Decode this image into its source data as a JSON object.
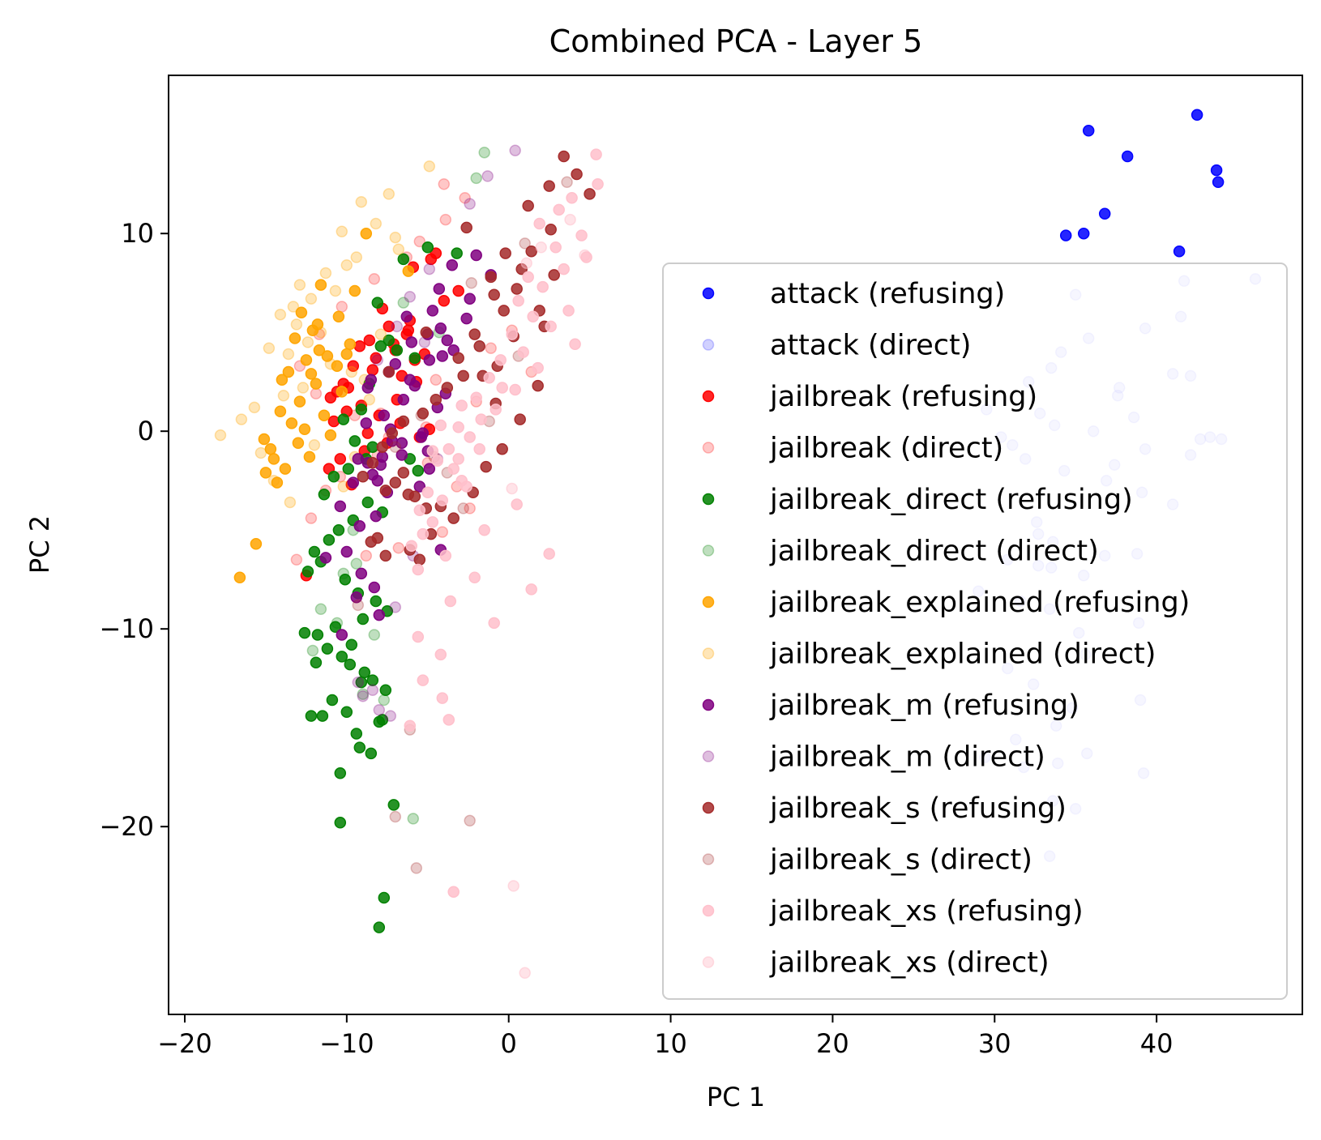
{
  "chart_data": {
    "type": "scatter",
    "title": "Combined PCA - Layer 5",
    "xlabel": "PC 1",
    "ylabel": "PC 2",
    "xlim": [
      -21,
      49
    ],
    "ylim": [
      -29.5,
      18.0
    ],
    "xticks": [
      -20,
      -10,
      0,
      10,
      20,
      30,
      40
    ],
    "yticks": [
      -20,
      -10,
      0,
      10
    ],
    "xtick_labels": [
      "−20",
      "−10",
      "0",
      "10",
      "20",
      "30",
      "40"
    ],
    "ytick_labels": [
      "−20",
      "−10",
      "0",
      "10"
    ],
    "grid": false,
    "legend_position": "center-right",
    "series": [
      {
        "name": "attack (refusing)",
        "color": "#0000ff",
        "alpha": 0.85,
        "x": [
          42.5,
          35.8,
          38.2,
          43.7,
          43.8,
          36.8,
          34.4,
          35.5,
          41.4
        ],
        "y": [
          16.0,
          15.2,
          13.9,
          13.2,
          12.6,
          11.0,
          9.9,
          10.0,
          9.1
        ]
      },
      {
        "name": "attack (direct)",
        "color": "#0000ff",
        "alpha": 0.18,
        "x": [
          46.1,
          41.7,
          35.0,
          41.5,
          39.3,
          35.8,
          34.1,
          33.5,
          41.0,
          42.1,
          32.1,
          37.7,
          37.6,
          29.5,
          32.8,
          38.6,
          33.7,
          36.1,
          30.4,
          31.1,
          39.3,
          42.1,
          43.3,
          42.7,
          44.0,
          31.9,
          37.4,
          34.3,
          36.9,
          39.1,
          41.0,
          32.6,
          32.7,
          33.6,
          38.8,
          30.8,
          33.5,
          35.5,
          29.0,
          31.6,
          33.4,
          38.9,
          35.2,
          35.6,
          30.8,
          32.4,
          39.0,
          34.8,
          33.8,
          31.3,
          29.4,
          39.2,
          35.7,
          33.9,
          31.8,
          33.6,
          35.0,
          33.4,
          36.8,
          32.7
        ],
        "y": [
          7.7,
          7.6,
          6.9,
          5.8,
          5.2,
          4.7,
          4.0,
          3.2,
          2.9,
          2.8,
          2.5,
          2.2,
          1.8,
          1.1,
          0.9,
          0.7,
          0.3,
          0.0,
          -0.3,
          -0.7,
          -0.9,
          -1.2,
          -0.3,
          -0.4,
          -0.4,
          -1.4,
          -1.7,
          -2.0,
          -2.5,
          -3.1,
          -3.7,
          -4.6,
          -5.2,
          -5.6,
          -6.2,
          -6.5,
          -6.9,
          -7.3,
          -8.1,
          -8.6,
          -9.0,
          -9.7,
          -10.2,
          -11.3,
          -12.0,
          -12.8,
          -13.6,
          -14.0,
          -14.9,
          -15.6,
          -16.5,
          -17.3,
          -16.3,
          -16.8,
          -17.0,
          -18.7,
          -19.1,
          -21.5,
          -6.3,
          -6.8
        ]
      },
      {
        "name": "jailbreak (refusing)",
        "color": "#ff0000",
        "alpha": 0.85,
        "x": [
          -4.5,
          -4.8,
          -5.9,
          -3.1,
          -4.0,
          -7.8,
          -6.1,
          -7.4,
          -6.3,
          -8.6,
          -9.2,
          -7.0,
          -5.2,
          -5.8,
          -9.6,
          -8.4,
          -6.6,
          -10.2,
          -10.6,
          -11.0,
          -9.1,
          -10.0,
          -8.0,
          -6.7,
          -4.9,
          -5.5,
          -7.5,
          -8.9,
          -10.4,
          -11.1,
          -9.7,
          -12.5,
          -6.2,
          -7.1,
          -8.2,
          -9.9,
          -10.8,
          -5.7,
          -6.9,
          -8.7
        ],
        "y": [
          9.0,
          8.7,
          8.3,
          7.1,
          6.6,
          6.2,
          5.6,
          5.3,
          4.9,
          4.6,
          4.3,
          4.1,
          3.9,
          3.6,
          3.3,
          3.1,
          2.8,
          2.4,
          2.0,
          1.7,
          1.3,
          1.0,
          0.8,
          0.4,
          0.1,
          -0.3,
          -0.6,
          -1.0,
          -1.4,
          -1.9,
          -2.7,
          -7.3,
          5.1,
          4.4,
          3.7,
          2.2,
          0.5,
          2.5,
          1.6,
          -0.1
        ]
      },
      {
        "name": "jailbreak (direct)",
        "color": "#ff0000",
        "alpha": 0.22,
        "x": [
          -4.0,
          -2.7,
          -3.9,
          -5.5,
          -6.3,
          -8.3,
          -10.3,
          -11.7,
          -12.9,
          -11.9,
          -9.5,
          -7.4,
          -5.0,
          -3.2,
          -2.4,
          -4.1,
          -6.8,
          -8.8,
          -12.2,
          -13.1,
          -10.4,
          -7.9,
          -4.5,
          -1.1,
          0.2,
          1.4,
          -2.0,
          -5.1,
          -8.1,
          -11.3
        ],
        "y": [
          12.5,
          11.8,
          10.7,
          9.6,
          8.8,
          7.7,
          6.3,
          4.9,
          3.3,
          1.9,
          0.8,
          -0.3,
          -1.6,
          -2.8,
          -3.9,
          -5.1,
          -5.9,
          -6.3,
          -4.4,
          -6.5,
          -2.3,
          0.9,
          2.6,
          4.2,
          5.1,
          3.0,
          1.5,
          0.2,
          -1.2,
          -3.0
        ]
      },
      {
        "name": "jailbreak_direct (refusing)",
        "color": "#008000",
        "alpha": 0.85,
        "x": [
          -5.0,
          -3.2,
          -6.5,
          -8.1,
          -7.4,
          -7.9,
          -6.9,
          -5.8,
          -8.6,
          -9.1,
          -10.2,
          -9.5,
          -8.8,
          -9.9,
          -10.8,
          -11.4,
          -8.7,
          -7.8,
          -9.6,
          -10.5,
          -11.1,
          -12.0,
          -11.6,
          -12.4,
          -10.1,
          -9.3,
          -8.2,
          -7.5,
          -9.0,
          -10.7,
          -11.8,
          -12.6,
          -11.2,
          -10.3,
          -9.8,
          -8.9,
          -8.4,
          -7.6,
          -10.9,
          -11.5,
          -12.2,
          -9.4,
          -8.0,
          -10.0,
          -11.9,
          -9.7,
          -9.2,
          -8.5,
          -10.4,
          -9.1,
          -7.1,
          -7.7,
          -10.4,
          -8.0,
          -7.8,
          -5.6,
          -6.1,
          -8.4
        ],
        "y": [
          9.3,
          9.0,
          8.7,
          6.5,
          4.6,
          4.3,
          4.1,
          3.7,
          2.4,
          1.1,
          0.6,
          -0.5,
          -1.4,
          -1.9,
          -2.3,
          -3.2,
          -3.6,
          -4.1,
          -4.5,
          -5.0,
          -5.5,
          -6.1,
          -6.6,
          -7.1,
          -7.5,
          -8.2,
          -8.6,
          -9.1,
          -9.5,
          -9.9,
          -10.3,
          -10.2,
          -11.0,
          -11.4,
          -11.8,
          -12.2,
          -12.6,
          -13.1,
          -13.6,
          -14.4,
          -14.4,
          -15.3,
          -14.7,
          -14.2,
          -11.7,
          -10.8,
          -16.0,
          -16.3,
          -17.3,
          -12.7,
          -18.9,
          -23.6,
          -19.8,
          -25.1,
          -14.6,
          -2.0,
          -1.4,
          -0.8
        ]
      },
      {
        "name": "jailbreak_direct (direct)",
        "color": "#008000",
        "alpha": 0.25,
        "x": [
          -1.5,
          -2.0,
          -6.5,
          -9.6,
          -10.2,
          -11.6,
          -12.1,
          -9.0,
          -7.7,
          -8.3,
          -9.4,
          -10.6,
          -5.9,
          -4.3
        ],
        "y": [
          14.1,
          12.8,
          6.5,
          -5.0,
          -7.2,
          -9.0,
          -11.1,
          -13.3,
          -13.6,
          -10.3,
          -6.7,
          -9.7,
          -19.6,
          5.0
        ]
      },
      {
        "name": "jailbreak_explained (refusing)",
        "color": "#ffa500",
        "alpha": 0.85,
        "x": [
          -8.8,
          -6.2,
          -11.6,
          -12.8,
          -9.5,
          -11.8,
          -10.5,
          -13.2,
          -12.1,
          -9.8,
          -11.2,
          -12.5,
          -10.6,
          -13.6,
          -14.0,
          -11.9,
          -10.3,
          -12.9,
          -14.1,
          -11.4,
          -13.4,
          -12.6,
          -11.0,
          -13.0,
          -14.7,
          -15.1,
          -14.5,
          -13.8,
          -12.3,
          -15.0,
          -14.3,
          -15.6,
          -16.6,
          -10.0,
          -11.7,
          -12.2
        ],
        "y": [
          10.0,
          8.1,
          7.4,
          6.0,
          7.1,
          5.4,
          5.8,
          4.7,
          5.1,
          4.4,
          3.8,
          3.6,
          3.3,
          3.0,
          2.6,
          2.4,
          2.0,
          1.5,
          1.0,
          0.8,
          0.4,
          0.1,
          -0.2,
          -0.6,
          -0.9,
          -0.4,
          -1.4,
          -1.9,
          -1.3,
          -2.1,
          -2.6,
          -5.7,
          -7.4,
          3.9,
          4.1,
          2.9
        ]
      },
      {
        "name": "jailbreak_explained (direct)",
        "color": "#ffa500",
        "alpha": 0.28,
        "x": [
          -4.9,
          -7.4,
          -9.1,
          -8.2,
          -10.3,
          -7.0,
          -6.8,
          -9.4,
          -10.0,
          -11.3,
          -12.9,
          -10.7,
          -12.2,
          -13.3,
          -14.1,
          -13.1,
          -11.6,
          -12.4,
          -14.8,
          -13.6,
          -11.0,
          -9.7,
          -8.9,
          -12.7,
          -13.9,
          -15.7,
          -16.5,
          -17.8,
          -15.3,
          -14.5,
          -13.5,
          -10.2,
          -9.5,
          -8.6,
          -7.9,
          -12.0
        ],
        "y": [
          13.4,
          12.0,
          11.6,
          10.5,
          10.1,
          9.8,
          9.2,
          8.8,
          8.4,
          8.0,
          7.4,
          7.1,
          6.7,
          6.3,
          5.9,
          5.4,
          5.0,
          4.5,
          4.2,
          3.9,
          3.4,
          3.0,
          2.6,
          2.2,
          1.8,
          1.2,
          0.6,
          -0.2,
          -1.1,
          -2.5,
          -3.6,
          -2.8,
          -1.3,
          1.6,
          4.9,
          -0.7
        ]
      },
      {
        "name": "jailbreak_m (refusing)",
        "color": "#800080",
        "alpha": 0.85,
        "x": [
          -2.0,
          -3.5,
          -1.1,
          -4.3,
          -2.4,
          -4.7,
          -6.3,
          -4.2,
          -5.0,
          -6.0,
          -3.4,
          -4.1,
          -7.0,
          -7.4,
          -8.5,
          -5.8,
          -3.9,
          -6.5,
          -4.4,
          -7.7,
          -8.8,
          -7.3,
          -5.4,
          -6.6,
          -5.0,
          -9.3,
          -7.9,
          -8.4,
          -9.6,
          -7.5,
          -10.4,
          -8.2,
          -11.3,
          -10.0,
          -9.1,
          -8.3,
          -9.4,
          -8.0,
          -10.3,
          -4.2,
          -3.8,
          -8.7,
          -6.1,
          -4.9,
          -2.6,
          -5.3,
          -7.2,
          -9.2,
          -6.6,
          -7.8,
          -8.7,
          -8.1,
          -5.5,
          -4.9
        ],
        "y": [
          8.9,
          8.4,
          7.9,
          7.2,
          6.7,
          6.1,
          5.8,
          5.2,
          4.9,
          4.5,
          4.1,
          3.8,
          3.4,
          3.0,
          2.6,
          2.3,
          1.9,
          1.6,
          1.2,
          0.8,
          0.4,
          0.1,
          -0.3,
          -0.6,
          -1.0,
          -1.4,
          -1.7,
          -2.2,
          -2.6,
          -3.1,
          -3.8,
          -4.3,
          -6.4,
          -6.1,
          -7.2,
          -7.9,
          -8.4,
          -9.3,
          -10.3,
          -6.0,
          4.6,
          2.2,
          2.6,
          3.6,
          5.7,
          -0.1,
          -0.5,
          -4.8,
          -1.2,
          -1.3,
          -1.6,
          -2.5,
          -2.8,
          -1.9
        ]
      },
      {
        "name": "jailbreak_m (direct)",
        "color": "#800080",
        "alpha": 0.25,
        "x": [
          0.4,
          -1.3,
          -2.4,
          -4.9,
          -6.1,
          -6.9,
          -5.2,
          -8.1,
          -9.3,
          -9.0,
          -8.4,
          -8.0,
          -7.3,
          -7.0,
          -5.9,
          -4.4
        ],
        "y": [
          14.2,
          12.9,
          11.5,
          8.2,
          6.8,
          5.3,
          4.5,
          3.6,
          -12.7,
          -13.4,
          -13.1,
          -14.1,
          -14.4,
          -8.9,
          -6.3,
          -1.4
        ]
      },
      {
        "name": "jailbreak_s (refusing)",
        "color": "#a52a2a",
        "alpha": 0.85,
        "x": [
          3.4,
          4.2,
          2.5,
          5.0,
          1.2,
          2.6,
          -2.6,
          -0.2,
          1.4,
          0.8,
          2.8,
          -1.1,
          0.5,
          -0.9,
          1.9,
          -0.3,
          2.2,
          -2.1,
          0.3,
          -1.8,
          -3.1,
          -0.7,
          -2.8,
          -3.8,
          -4.5,
          -5.3,
          -6.5,
          -7.2,
          -7.8,
          -8.4,
          -9.0,
          -7.6,
          -6.2,
          -5.1,
          -4.2,
          -5.8,
          -7.0,
          -8.1,
          -8.5,
          -7.6,
          -6.1,
          -5.5,
          -4.8,
          -3.4,
          -2.2,
          -1.4,
          -0.4,
          0.7,
          -0.8,
          1.8,
          -1.6,
          -5.1,
          -7.4,
          -6.5
        ],
        "y": [
          13.9,
          13.0,
          12.4,
          12.0,
          11.4,
          10.2,
          10.3,
          9.0,
          9.1,
          8.2,
          7.9,
          7.8,
          7.2,
          6.9,
          6.1,
          6.1,
          5.3,
          4.9,
          4.8,
          4.3,
          3.7,
          3.3,
          2.8,
          2.2,
          1.6,
          0.9,
          0.5,
          -0.1,
          -0.8,
          -1.6,
          -2.3,
          -3.0,
          -3.2,
          -3.9,
          -3.8,
          -3.3,
          -2.6,
          -5.4,
          -5.6,
          -6.3,
          -6.0,
          -6.5,
          -5.2,
          -4.4,
          -3.1,
          -1.8,
          -0.9,
          0.6,
          1.4,
          2.3,
          2.8,
          5.0,
          3.0,
          -2.1
        ]
      },
      {
        "name": "jailbreak_s (direct)",
        "color": "#a52a2a",
        "alpha": 0.25,
        "x": [
          3.6,
          1.0,
          -2.3,
          -5.4,
          -7.0,
          -2.4,
          -5.7,
          -7.0,
          -9.3,
          -6.1,
          -3.8,
          -1.2,
          0.6,
          -4.6,
          -2.8
        ],
        "y": [
          12.6,
          9.5,
          7.5,
          0.8,
          -0.8,
          -19.7,
          -22.1,
          -19.5,
          -8.8,
          -15.1,
          -2.1,
          0.5,
          3.8,
          -1.3,
          -3.9
        ]
      },
      {
        "name": "jailbreak_xs (refusing)",
        "color": "#ffc0cb",
        "alpha": 0.85,
        "x": [
          5.4,
          5.5,
          3.9,
          3.1,
          1.9,
          4.5,
          2.9,
          4.8,
          3.4,
          1.2,
          2.1,
          0.6,
          3.7,
          1.5,
          2.6,
          0.2,
          4.1,
          0.9,
          -0.5,
          1.8,
          -1.2,
          0.4,
          -2.0,
          -0.8,
          -1.7,
          -3.1,
          -2.4,
          -3.7,
          -4.4,
          -3.4,
          -2.9,
          -5.0,
          -4.1,
          -5.5,
          -4.7,
          -5.3,
          -6.0,
          -3.9,
          -2.1,
          -3.6,
          -5.6,
          -4.2,
          -5.3,
          -6.1,
          -4.1,
          -3.7,
          -0.9,
          1.4,
          2.5,
          -1.5,
          0.5,
          -2.6,
          -3.1,
          -4.2,
          -5.6,
          -3.4,
          -1.8,
          -2.9,
          -4.7,
          -0.4
        ],
        "y": [
          14.0,
          12.5,
          11.8,
          11.2,
          10.5,
          9.9,
          9.3,
          8.8,
          8.2,
          7.8,
          7.3,
          6.6,
          6.1,
          5.8,
          5.3,
          4.9,
          4.4,
          4.0,
          3.6,
          3.2,
          2.7,
          2.1,
          1.7,
          1.1,
          0.6,
          0.2,
          -0.3,
          -0.9,
          -1.5,
          -1.9,
          -2.5,
          -3.1,
          -3.5,
          -4.0,
          -4.6,
          -5.2,
          -5.8,
          -6.3,
          -7.4,
          -8.6,
          -10.4,
          -11.3,
          -12.6,
          -14.9,
          -13.5,
          -14.6,
          -9.7,
          -8.0,
          -6.2,
          -5.0,
          -3.7,
          -2.8,
          -1.4,
          0.3,
          -7.0,
          -23.3,
          -0.9,
          1.3,
          -1.0,
          2.2
        ]
      },
      {
        "name": "jailbreak_xs (direct)",
        "color": "#ffc0cb",
        "alpha": 0.45,
        "x": [
          4.7,
          3.8,
          2.0,
          1.1,
          0.3,
          0.2,
          1.0
        ],
        "y": [
          8.9,
          10.7,
          9.3,
          8.5,
          -23.0,
          -2.9,
          -27.4
        ]
      }
    ]
  }
}
